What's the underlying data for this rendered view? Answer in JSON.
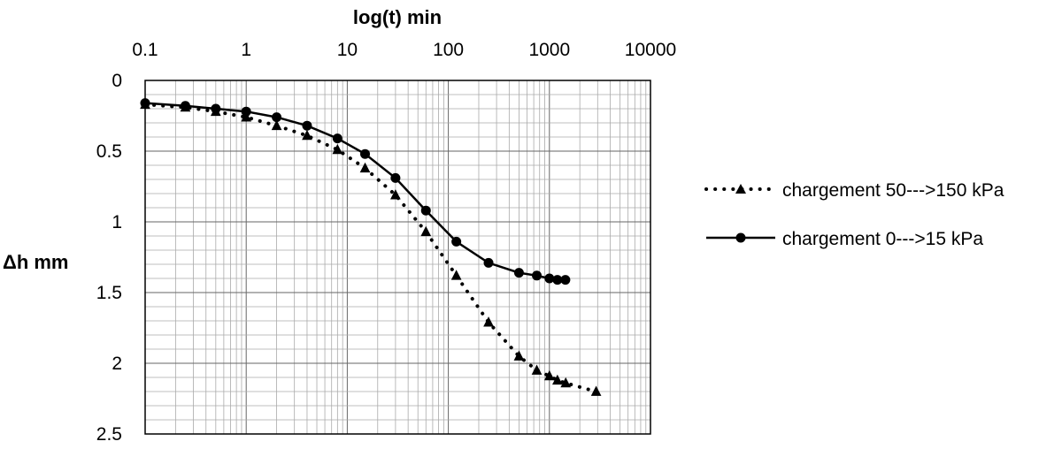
{
  "chart_data": {
    "type": "scatter",
    "title": "",
    "xlabel": "log(t) min",
    "ylabel": "Δh mm",
    "x_scale": "log",
    "y_inverted": true,
    "xlim": [
      0.1,
      10000
    ],
    "ylim": [
      0,
      2.5
    ],
    "x_ticks": [
      "0.1",
      "1",
      "10",
      "100",
      "1000",
      "10000"
    ],
    "y_ticks": [
      "0",
      "0.5",
      "1",
      "1.5",
      "2",
      "2.5"
    ],
    "grid": true,
    "legend_position": "right",
    "series": [
      {
        "name": "chargement 50--->150 kPa",
        "style": "dotted",
        "marker": "triangle",
        "color": "#000000",
        "points": [
          [
            0.1,
            0.17
          ],
          [
            0.25,
            0.19
          ],
          [
            0.5,
            0.22
          ],
          [
            1,
            0.26
          ],
          [
            2,
            0.32
          ],
          [
            4,
            0.39
          ],
          [
            8,
            0.49
          ],
          [
            15,
            0.62
          ],
          [
            30,
            0.81
          ],
          [
            60,
            1.07
          ],
          [
            120,
            1.38
          ],
          [
            250,
            1.71
          ],
          [
            500,
            1.95
          ],
          [
            750,
            2.05
          ],
          [
            1000,
            2.09
          ],
          [
            1200,
            2.12
          ],
          [
            1450,
            2.14
          ],
          [
            2900,
            2.2
          ]
        ]
      },
      {
        "name": "chargement 0--->15 kPa",
        "style": "solid",
        "marker": "circle",
        "color": "#000000",
        "points": [
          [
            0.1,
            0.16
          ],
          [
            0.25,
            0.18
          ],
          [
            0.5,
            0.2
          ],
          [
            1,
            0.22
          ],
          [
            2,
            0.26
          ],
          [
            4,
            0.32
          ],
          [
            8,
            0.41
          ],
          [
            15,
            0.52
          ],
          [
            30,
            0.69
          ],
          [
            60,
            0.92
          ],
          [
            120,
            1.14
          ],
          [
            250,
            1.29
          ],
          [
            500,
            1.36
          ],
          [
            750,
            1.38
          ],
          [
            1000,
            1.4
          ],
          [
            1200,
            1.41
          ],
          [
            1440,
            1.41
          ]
        ]
      }
    ]
  }
}
